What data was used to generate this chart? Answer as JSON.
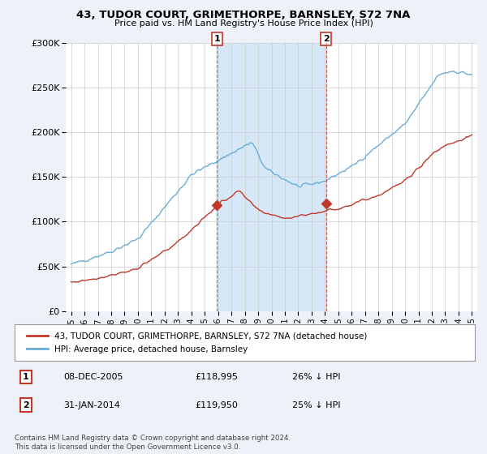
{
  "title": "43, TUDOR COURT, GRIMETHORPE, BARNSLEY, S72 7NA",
  "subtitle": "Price paid vs. HM Land Registry's House Price Index (HPI)",
  "legend_line1": "43, TUDOR COURT, GRIMETHORPE, BARNSLEY, S72 7NA (detached house)",
  "legend_line2": "HPI: Average price, detached house, Barnsley",
  "sale1_date": "08-DEC-2005",
  "sale1_price": 118995,
  "sale1_pct": "26% ↓ HPI",
  "sale2_date": "31-JAN-2014",
  "sale2_price": 119950,
  "sale2_pct": "25% ↓ HPI",
  "footer": "Contains HM Land Registry data © Crown copyright and database right 2024.\nThis data is licensed under the Open Government Licence v3.0.",
  "hpi_color": "#6aaed6",
  "price_color": "#c0392b",
  "background_color": "#eef2f8",
  "plot_bg_color": "#ffffff",
  "ylim": [
    0,
    300000
  ],
  "yticks": [
    0,
    50000,
    100000,
    150000,
    200000,
    250000,
    300000
  ],
  "ytick_labels": [
    "£0",
    "£50K",
    "£100K",
    "£150K",
    "£200K",
    "£250K",
    "£300K"
  ],
  "sale1_x": 2005.92,
  "sale2_x": 2014.08,
  "marker_size": 7,
  "sale_box_color": "#c0392b",
  "span_color": "#d6e8f7",
  "grid_color": "#cccccc"
}
